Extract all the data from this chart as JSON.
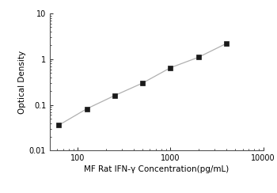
{
  "x_data": [
    62.5,
    125,
    250,
    500,
    1000,
    2000,
    4000
  ],
  "y_data": [
    0.036,
    0.082,
    0.16,
    0.3,
    0.65,
    1.1,
    2.2
  ],
  "xlabel": "MF Rat IFN-γ Concentration(pg/mL)",
  "ylabel": "Optical Density",
  "xlim": [
    50,
    10000
  ],
  "ylim": [
    0.01,
    10
  ],
  "line_color": "#b0b0b0",
  "marker_color": "#1a1a1a",
  "marker_style": "s",
  "marker_size": 4,
  "line_width": 0.9,
  "background_color": "#ffffff",
  "tick_label_fontsize": 7,
  "axis_label_fontsize": 7.5,
  "yticks": [
    0.01,
    0.1,
    1,
    10
  ],
  "xticks": [
    100,
    1000,
    10000
  ]
}
